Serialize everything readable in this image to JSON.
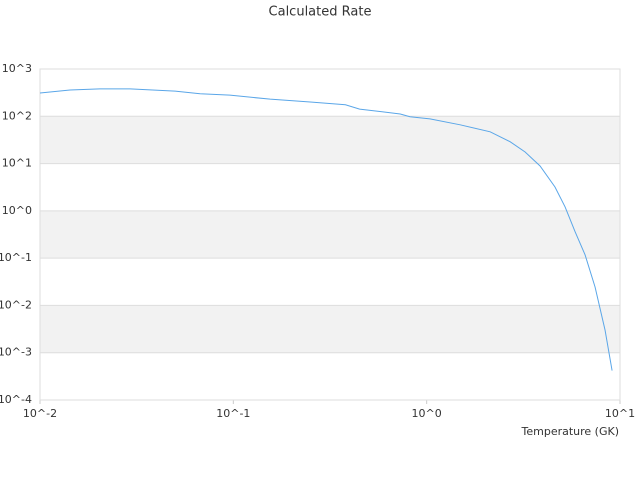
{
  "chart_data": {
    "type": "line",
    "title": "Calculated Rate",
    "x_label": "Temperature (GK)",
    "xscale": "log",
    "yscale": "log",
    "grid": true,
    "xlim": [
      0.01,
      10
    ],
    "ylim": [
      0.0001,
      1000
    ],
    "xticks": [
      {
        "value": 0.01,
        "label": "10^-2"
      },
      {
        "value": 0.1,
        "label": "10^-1"
      },
      {
        "value": 1,
        "label": "10^0"
      },
      {
        "value": 10,
        "label": "10^1"
      }
    ],
    "yticks": [
      {
        "value": 0.0001,
        "label": "10^-4"
      },
      {
        "value": 0.001,
        "label": "10^-3"
      },
      {
        "value": 0.01,
        "label": "10^-2"
      },
      {
        "value": 0.1,
        "label": "10^-1"
      },
      {
        "value": 1,
        "label": "10^0"
      },
      {
        "value": 10,
        "label": "10^1"
      },
      {
        "value": 100,
        "label": "10^2"
      },
      {
        "value": 1000,
        "label": "10^3"
      }
    ],
    "x": [
      0.01,
      0.0143,
      0.0204,
      0.0292,
      0.05,
      0.0673,
      0.096,
      0.155,
      0.25,
      0.38,
      0.45,
      0.73,
      0.82,
      1.04,
      1.49,
      2.13,
      2.7,
      3.23,
      3.86,
      4.61,
      5.2,
      5.86,
      6.6,
      7.43,
      8.37,
      9.1
    ],
    "series": [
      {
        "name": "Rate",
        "color": "#5aa6e8",
        "values": [
          310,
          360,
          380,
          380,
          340,
          300,
          280,
          230,
          200,
          175,
          142,
          112,
          98,
          88,
          66,
          47,
          29,
          17.6,
          8.9,
          3.2,
          1.21,
          0.36,
          0.117,
          0.0245,
          0.003,
          0.00042
        ]
      }
    ]
  }
}
